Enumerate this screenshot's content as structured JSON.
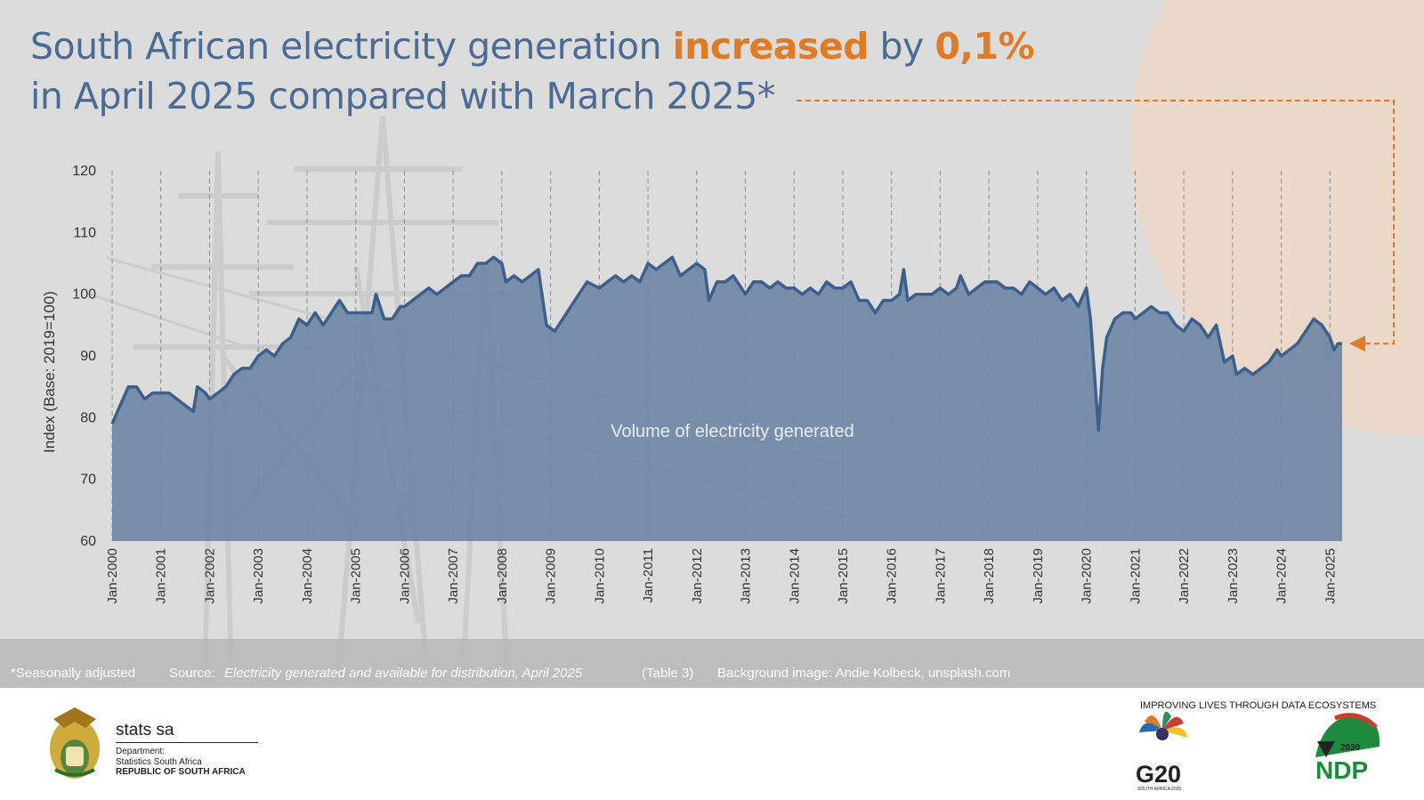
{
  "title": {
    "line1_pre": "South African electricity generation ",
    "line1_hl1": "increased",
    "line1_mid": " by ",
    "line1_hl2": "0,1%",
    "line2": "in April 2025 compared with March 2025*"
  },
  "colors": {
    "accent": "#e07b24",
    "title": "#4a6b94",
    "area": "#6f87a6",
    "line": "#3d5f8c",
    "bg": "#dcdcdc"
  },
  "chart_data": {
    "type": "area",
    "ylabel": "Index (Base: 2019=100)",
    "ylim": [
      60,
      120
    ],
    "yticks": [
      60,
      70,
      80,
      90,
      100,
      110,
      120
    ],
    "xlabels": [
      "Jan-2000",
      "Jan-2001",
      "Jan-2002",
      "Jan-2003",
      "Jan-2004",
      "Jan-2005",
      "Jan-2006",
      "Jan-2007",
      "Jan-2008",
      "Jan-2009",
      "Jan-2010",
      "Jan-2011",
      "Jan-2012",
      "Jan-2013",
      "Jan-2014",
      "Jan-2015",
      "Jan-2016",
      "Jan-2017",
      "Jan-2018",
      "Jan-2019",
      "Jan-2020",
      "Jan-2021",
      "Jan-2022",
      "Jan-2023",
      "Jan-2024",
      "Jan-2025"
    ],
    "x_start": "2000-01",
    "x_end": "2025-04",
    "annotation": "Volume of electricity generated",
    "grid_x": true,
    "points": [
      [
        "2000-01",
        79
      ],
      [
        "2000-03",
        82
      ],
      [
        "2000-05",
        85
      ],
      [
        "2000-07",
        85
      ],
      [
        "2000-09",
        83
      ],
      [
        "2000-11",
        84
      ],
      [
        "2001-01",
        84
      ],
      [
        "2001-03",
        84
      ],
      [
        "2001-05",
        83
      ],
      [
        "2001-07",
        82
      ],
      [
        "2001-09",
        81
      ],
      [
        "2001-10",
        85
      ],
      [
        "2001-12",
        84
      ],
      [
        "2002-01",
        83
      ],
      [
        "2002-03",
        84
      ],
      [
        "2002-05",
        85
      ],
      [
        "2002-07",
        87
      ],
      [
        "2002-09",
        88
      ],
      [
        "2002-11",
        88
      ],
      [
        "2003-01",
        90
      ],
      [
        "2003-03",
        91
      ],
      [
        "2003-05",
        90
      ],
      [
        "2003-07",
        92
      ],
      [
        "2003-09",
        93
      ],
      [
        "2003-11",
        96
      ],
      [
        "2004-01",
        95
      ],
      [
        "2004-03",
        97
      ],
      [
        "2004-05",
        95
      ],
      [
        "2004-07",
        97
      ],
      [
        "2004-09",
        99
      ],
      [
        "2004-11",
        97
      ],
      [
        "2005-01",
        97
      ],
      [
        "2005-03",
        97
      ],
      [
        "2005-05",
        97
      ],
      [
        "2005-06",
        100
      ],
      [
        "2005-08",
        96
      ],
      [
        "2005-10",
        96
      ],
      [
        "2005-12",
        98
      ],
      [
        "2006-01",
        98
      ],
      [
        "2006-03",
        99
      ],
      [
        "2006-05",
        100
      ],
      [
        "2006-07",
        101
      ],
      [
        "2006-09",
        100
      ],
      [
        "2006-11",
        101
      ],
      [
        "2007-01",
        102
      ],
      [
        "2007-03",
        103
      ],
      [
        "2007-05",
        103
      ],
      [
        "2007-07",
        105
      ],
      [
        "2007-09",
        105
      ],
      [
        "2007-11",
        106
      ],
      [
        "2008-01",
        105
      ],
      [
        "2008-02",
        102
      ],
      [
        "2008-04",
        103
      ],
      [
        "2008-06",
        102
      ],
      [
        "2008-08",
        103
      ],
      [
        "2008-10",
        104
      ],
      [
        "2008-12",
        95
      ],
      [
        "2009-02",
        94
      ],
      [
        "2009-04",
        96
      ],
      [
        "2009-06",
        98
      ],
      [
        "2009-08",
        100
      ],
      [
        "2009-10",
        102
      ],
      [
        "2010-01",
        101
      ],
      [
        "2010-03",
        102
      ],
      [
        "2010-05",
        103
      ],
      [
        "2010-07",
        102
      ],
      [
        "2010-09",
        103
      ],
      [
        "2010-11",
        102
      ],
      [
        "2011-01",
        105
      ],
      [
        "2011-03",
        104
      ],
      [
        "2011-05",
        105
      ],
      [
        "2011-07",
        106
      ],
      [
        "2011-09",
        103
      ],
      [
        "2011-11",
        104
      ],
      [
        "2012-01",
        105
      ],
      [
        "2012-03",
        104
      ],
      [
        "2012-04",
        99
      ],
      [
        "2012-06",
        102
      ],
      [
        "2012-08",
        102
      ],
      [
        "2012-10",
        103
      ],
      [
        "2012-12",
        101
      ],
      [
        "2013-01",
        100
      ],
      [
        "2013-03",
        102
      ],
      [
        "2013-05",
        102
      ],
      [
        "2013-07",
        101
      ],
      [
        "2013-09",
        102
      ],
      [
        "2013-11",
        101
      ],
      [
        "2014-01",
        101
      ],
      [
        "2014-03",
        100
      ],
      [
        "2014-05",
        101
      ],
      [
        "2014-07",
        100
      ],
      [
        "2014-09",
        102
      ],
      [
        "2014-11",
        101
      ],
      [
        "2015-01",
        101
      ],
      [
        "2015-03",
        102
      ],
      [
        "2015-05",
        99
      ],
      [
        "2015-07",
        99
      ],
      [
        "2015-09",
        97
      ],
      [
        "2015-11",
        99
      ],
      [
        "2016-01",
        99
      ],
      [
        "2016-03",
        100
      ],
      [
        "2016-04",
        104
      ],
      [
        "2016-05",
        99
      ],
      [
        "2016-07",
        100
      ],
      [
        "2016-09",
        100
      ],
      [
        "2016-11",
        100
      ],
      [
        "2017-01",
        101
      ],
      [
        "2017-03",
        100
      ],
      [
        "2017-05",
        101
      ],
      [
        "2017-06",
        103
      ],
      [
        "2017-08",
        100
      ],
      [
        "2017-10",
        101
      ],
      [
        "2017-12",
        102
      ],
      [
        "2018-01",
        102
      ],
      [
        "2018-03",
        102
      ],
      [
        "2018-05",
        101
      ],
      [
        "2018-07",
        101
      ],
      [
        "2018-09",
        100
      ],
      [
        "2018-11",
        102
      ],
      [
        "2019-01",
        101
      ],
      [
        "2019-03",
        100
      ],
      [
        "2019-05",
        101
      ],
      [
        "2019-07",
        99
      ],
      [
        "2019-09",
        100
      ],
      [
        "2019-11",
        98
      ],
      [
        "2020-01",
        101
      ],
      [
        "2020-02",
        96
      ],
      [
        "2020-04",
        78
      ],
      [
        "2020-05",
        88
      ],
      [
        "2020-06",
        93
      ],
      [
        "2020-08",
        96
      ],
      [
        "2020-10",
        97
      ],
      [
        "2020-12",
        97
      ],
      [
        "2021-01",
        96
      ],
      [
        "2021-03",
        97
      ],
      [
        "2021-05",
        98
      ],
      [
        "2021-07",
        97
      ],
      [
        "2021-09",
        97
      ],
      [
        "2021-11",
        95
      ],
      [
        "2022-01",
        94
      ],
      [
        "2022-03",
        96
      ],
      [
        "2022-05",
        95
      ],
      [
        "2022-07",
        93
      ],
      [
        "2022-09",
        95
      ],
      [
        "2022-11",
        89
      ],
      [
        "2023-01",
        90
      ],
      [
        "2023-02",
        87
      ],
      [
        "2023-04",
        88
      ],
      [
        "2023-06",
        87
      ],
      [
        "2023-08",
        88
      ],
      [
        "2023-10",
        89
      ],
      [
        "2023-12",
        91
      ],
      [
        "2024-01",
        90
      ],
      [
        "2024-03",
        91
      ],
      [
        "2024-05",
        92
      ],
      [
        "2024-07",
        94
      ],
      [
        "2024-09",
        96
      ],
      [
        "2024-11",
        95
      ],
      [
        "2025-01",
        93
      ],
      [
        "2025-02",
        91
      ],
      [
        "2025-03",
        92
      ],
      [
        "2025-04",
        92
      ]
    ]
  },
  "footnote": {
    "adjusted": "*Seasonally adjusted",
    "source_label": "Source:",
    "source_title": "Electricity generated and available for distribution, April 2025",
    "source_table": "(Table 3)",
    "background": "Background image: Andie Kolbeck, unsplash.com"
  },
  "footer": {
    "brand": "stats sa",
    "dept1": "Department:",
    "dept2": "Statistics South Africa",
    "dept3": "REPUBLIC OF SOUTH AFRICA",
    "tagline": "IMPROVING LIVES THROUGH DATA ECOSYSTEMS",
    "g20": "G20",
    "g20_sub": "SOUTH AFRICA 2025",
    "ndp_year": "2030",
    "ndp": "NDP"
  }
}
